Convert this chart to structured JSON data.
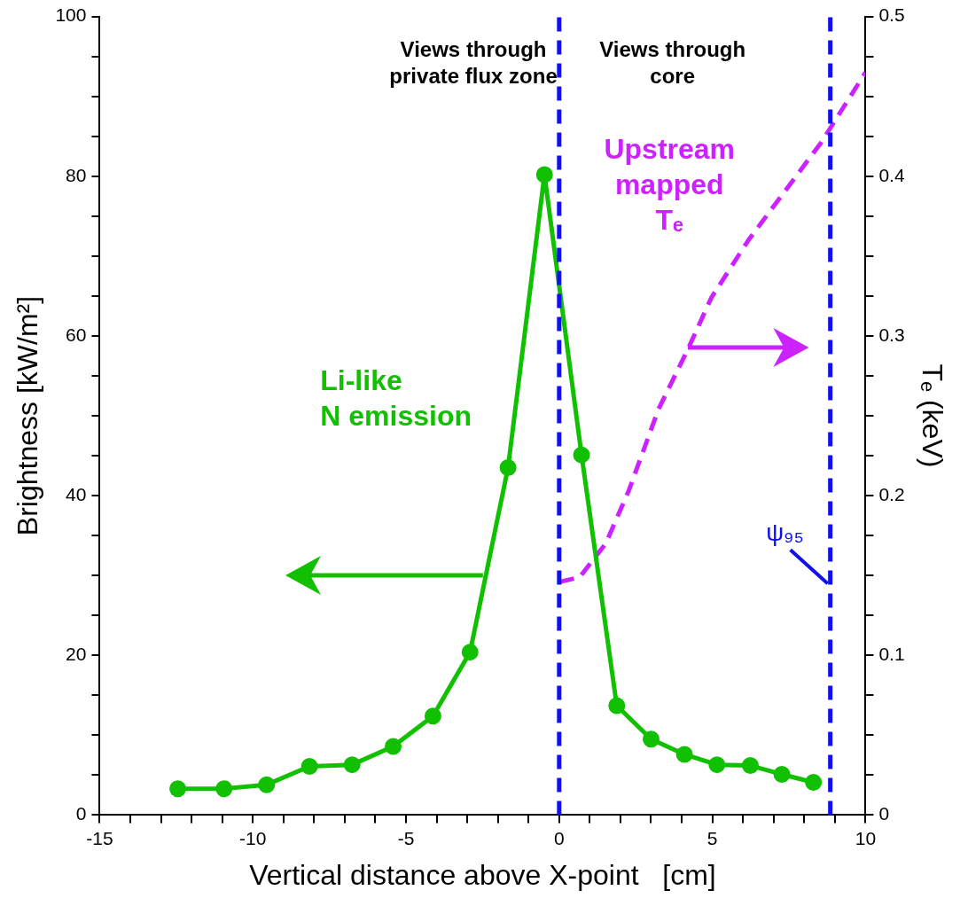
{
  "chart_data": {
    "type": "line",
    "xlabel": "Vertical distance above X-point   [cm]",
    "ylabel": "Brightness [kW/m²]",
    "y2label": "Tₑ (keV)",
    "xlim": [
      -15,
      10
    ],
    "xticks": [
      -15,
      {
        "value": -14,
        "label": null
      },
      {
        "value": -13,
        "label": null
      },
      {
        "value": -12,
        "label": null
      },
      {
        "value": -11,
        "label": null
      },
      -10,
      {
        "value": -9,
        "label": null
      },
      {
        "value": -8,
        "label": null
      },
      {
        "value": -7,
        "label": null
      },
      {
        "value": -6,
        "label": null
      },
      -5,
      {
        "value": -4,
        "label": null
      },
      {
        "value": -3,
        "label": null
      },
      {
        "value": -2,
        "label": null
      },
      {
        "value": -1,
        "label": null
      },
      0,
      {
        "value": 1,
        "label": null
      },
      {
        "value": 2,
        "label": null
      },
      {
        "value": 3,
        "label": null
      },
      {
        "value": 4,
        "label": null
      },
      5,
      {
        "value": 6,
        "label": null
      },
      {
        "value": 7,
        "label": null
      },
      {
        "value": 8,
        "label": null
      },
      {
        "value": 9,
        "label": null
      },
      10
    ],
    "ylim": [
      0,
      100
    ],
    "yticks": [
      0,
      {
        "value": 5,
        "label": null
      },
      {
        "value": 10,
        "label": null
      },
      {
        "value": 15,
        "label": null
      },
      20,
      {
        "value": 25,
        "label": null
      },
      {
        "value": 30,
        "label": null
      },
      {
        "value": 35,
        "label": null
      },
      40,
      {
        "value": 45,
        "label": null
      },
      {
        "value": 50,
        "label": null
      },
      {
        "value": 55,
        "label": null
      },
      60,
      {
        "value": 65,
        "label": null
      },
      {
        "value": 70,
        "label": null
      },
      {
        "value": 75,
        "label": null
      },
      80,
      {
        "value": 85,
        "label": null
      },
      {
        "value": 90,
        "label": null
      },
      {
        "value": 95,
        "label": null
      },
      100
    ],
    "y2lim": [
      0,
      0.5
    ],
    "y2ticks": [
      0,
      {
        "value": 0.025,
        "label": null
      },
      {
        "value": 0.05,
        "label": null
      },
      {
        "value": 0.075,
        "label": null
      },
      0.1,
      {
        "value": 0.125,
        "label": null
      },
      {
        "value": 0.15,
        "label": null
      },
      {
        "value": 0.175,
        "label": null
      },
      0.2,
      {
        "value": 0.225,
        "label": null
      },
      {
        "value": 0.25,
        "label": null
      },
      {
        "value": 0.275,
        "label": null
      },
      0.3,
      {
        "value": 0.325,
        "label": null
      },
      {
        "value": 0.35,
        "label": null
      },
      {
        "value": 0.375,
        "label": null
      },
      0.4,
      {
        "value": 0.425,
        "label": null
      },
      {
        "value": 0.45,
        "label": null
      },
      {
        "value": 0.475,
        "label": null
      },
      0.5
    ],
    "grid": false,
    "legend": false,
    "series": [
      {
        "color": "#11c000",
        "marker": "circle",
        "line_style": "solid",
        "x": [
          -12.45,
          -10.94,
          -9.55,
          -8.15,
          -6.76,
          -5.42,
          -4.12,
          -2.91,
          -1.67,
          -0.48,
          0.73,
          1.88,
          3.0,
          4.09,
          5.15,
          6.24,
          7.27,
          8.3
        ],
        "values": [
          3.3,
          3.3,
          3.8,
          6.1,
          6.3,
          8.6,
          12.4,
          20.4,
          43.5,
          80.2,
          45.1,
          13.7,
          9.5,
          7.6,
          6.3,
          6.2,
          5.1,
          4.1
        ]
      },
      {
        "color": "#cc22ff",
        "marker": "none",
        "line_style": "dashed",
        "axis": "y2",
        "x": [
          0.03,
          0.67,
          1.52,
          2.27,
          3.24,
          4.21,
          4.97,
          6.18,
          8.55,
          10.0
        ],
        "values": [
          0.146,
          0.149,
          0.17,
          0.203,
          0.254,
          0.292,
          0.324,
          0.36,
          0.421,
          0.465
        ]
      }
    ],
    "ref_lines": [
      {
        "axis": "x",
        "value": 0,
        "color": "#1010ee",
        "line_style": "dashed"
      },
      {
        "axis": "x",
        "value": 8.85,
        "label": "ψ₉₅",
        "color": "#1010ee",
        "line_style": "dashed"
      }
    ],
    "annotations": [
      "Views through\nprivate flux zone",
      "Views through\ncore",
      "Li-like\nN emission",
      "Upstream\nmapped\nTₑ"
    ]
  }
}
